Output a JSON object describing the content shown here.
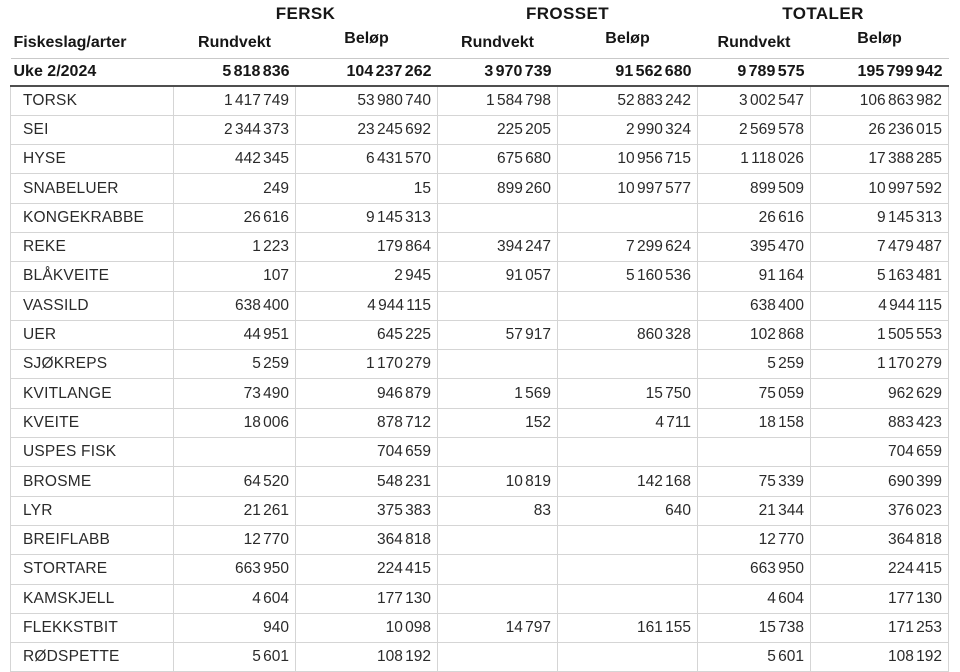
{
  "page": {
    "background": "#ffffff",
    "text_color": "#1f1f1f",
    "grid_color": "#d5d5d5",
    "header_rule_color": "#4f4f4f"
  },
  "table": {
    "group_headers": [
      "FERSK",
      "FROSSET",
      "TOTALER"
    ],
    "species_header": "Fiskeslag/arter",
    "sub_headers": {
      "rundvekt": "Rundvekt",
      "belop": "Beløp"
    },
    "totals_row": {
      "label": "Uke 2/2024",
      "values": [
        "5 818 836",
        "104 237 262",
        "3 970 739",
        "91 562 680",
        "9 789 575",
        "195 799 942"
      ]
    },
    "rows": [
      {
        "species": "TORSK",
        "values": [
          "1 417 749",
          "53 980 740",
          "1 584 798",
          "52 883 242",
          "3 002 547",
          "106 863 982"
        ]
      },
      {
        "species": "SEI",
        "values": [
          "2 344 373",
          "23 245 692",
          "225 205",
          "2 990 324",
          "2 569 578",
          "26 236 015"
        ]
      },
      {
        "species": "HYSE",
        "values": [
          "442 345",
          "6 431 570",
          "675 680",
          "10 956 715",
          "1 118 026",
          "17 388 285"
        ]
      },
      {
        "species": "SNABELUER",
        "values": [
          "249",
          "15",
          "899 260",
          "10 997 577",
          "899 509",
          "10 997 592"
        ]
      },
      {
        "species": "KONGEKRABBE",
        "values": [
          "26 616",
          "9 145 313",
          "",
          "",
          "26 616",
          "9 145 313"
        ]
      },
      {
        "species": "REKE",
        "values": [
          "1 223",
          "179 864",
          "394 247",
          "7 299 624",
          "395 470",
          "7 479 487"
        ]
      },
      {
        "species": "BLÅKVEITE",
        "values": [
          "107",
          "2 945",
          "91 057",
          "5 160 536",
          "91 164",
          "5 163 481"
        ]
      },
      {
        "species": "VASSILD",
        "values": [
          "638 400",
          "4 944 115",
          "",
          "",
          "638 400",
          "4 944 115"
        ]
      },
      {
        "species": "UER",
        "values": [
          "44 951",
          "645 225",
          "57 917",
          "860 328",
          "102 868",
          "1 505 553"
        ]
      },
      {
        "species": "SJØKREPS",
        "values": [
          "5 259",
          "1 170 279",
          "",
          "",
          "5 259",
          "1 170 279"
        ]
      },
      {
        "species": "KVITLANGE",
        "values": [
          "73 490",
          "946 879",
          "1 569",
          "15 750",
          "75 059",
          "962 629"
        ]
      },
      {
        "species": "KVEITE",
        "values": [
          "18 006",
          "878 712",
          "152",
          "4 711",
          "18 158",
          "883 423"
        ]
      },
      {
        "species": "USPES FISK",
        "values": [
          "",
          "704 659",
          "",
          "",
          "",
          "704 659"
        ]
      },
      {
        "species": "BROSME",
        "values": [
          "64 520",
          "548 231",
          "10 819",
          "142 168",
          "75 339",
          "690 399"
        ]
      },
      {
        "species": "LYR",
        "values": [
          "21 261",
          "375 383",
          "83",
          "640",
          "21 344",
          "376 023"
        ]
      },
      {
        "species": "BREIFLABB",
        "values": [
          "12 770",
          "364 818",
          "",
          "",
          "12 770",
          "364 818"
        ]
      },
      {
        "species": "STORTARE",
        "values": [
          "663 950",
          "224 415",
          "",
          "",
          "663 950",
          "224 415"
        ]
      },
      {
        "species": "KAMSKJELL",
        "values": [
          "4 604",
          "177 130",
          "",
          "",
          "4 604",
          "177 130"
        ]
      },
      {
        "species": "FLEKKSTBIT",
        "values": [
          "940",
          "10 098",
          "14 797",
          "161 155",
          "15 738",
          "171 253"
        ]
      },
      {
        "species": "RØDSPETTE",
        "values": [
          "5 601",
          "108 192",
          "",
          "",
          "5 601",
          "108 192"
        ]
      }
    ]
  },
  "chart_data": {
    "type": "table",
    "title": "",
    "columns": [
      "Fiskeslag/arter",
      "FERSK Rundvekt",
      "FERSK Beløp",
      "FROSSET Rundvekt",
      "FROSSET Beløp",
      "TOTALER Rundvekt",
      "TOTALER Beløp"
    ],
    "rows": [
      [
        "Uke 2/2024",
        5818836,
        104237262,
        3970739,
        91562680,
        9789575,
        195799942
      ],
      [
        "TORSK",
        1417749,
        53980740,
        1584798,
        52883242,
        3002547,
        106863982
      ],
      [
        "SEI",
        2344373,
        23245692,
        225205,
        2990324,
        2569578,
        26236015
      ],
      [
        "HYSE",
        442345,
        6431570,
        675680,
        10956715,
        1118026,
        17388285
      ],
      [
        "SNABELUER",
        249,
        15,
        899260,
        10997577,
        899509,
        10997592
      ],
      [
        "KONGEKRABBE",
        26616,
        9145313,
        null,
        null,
        26616,
        9145313
      ],
      [
        "REKE",
        1223,
        179864,
        394247,
        7299624,
        395470,
        7479487
      ],
      [
        "BLÅKVEITE",
        107,
        2945,
        91057,
        5160536,
        91164,
        5163481
      ],
      [
        "VASSILD",
        638400,
        4944115,
        null,
        null,
        638400,
        4944115
      ],
      [
        "UER",
        44951,
        645225,
        57917,
        860328,
        102868,
        1505553
      ],
      [
        "SJØKREPS",
        5259,
        1170279,
        null,
        null,
        5259,
        1170279
      ],
      [
        "KVITLANGE",
        73490,
        946879,
        1569,
        15750,
        75059,
        962629
      ],
      [
        "KVEITE",
        18006,
        878712,
        152,
        4711,
        18158,
        883423
      ],
      [
        "USPES FISK",
        null,
        704659,
        null,
        null,
        null,
        704659
      ],
      [
        "BROSME",
        64520,
        548231,
        10819,
        142168,
        75339,
        690399
      ],
      [
        "LYR",
        21261,
        375383,
        83,
        640,
        21344,
        376023
      ],
      [
        "BREIFLABB",
        12770,
        364818,
        null,
        null,
        12770,
        364818
      ],
      [
        "STORTARE",
        663950,
        224415,
        null,
        null,
        663950,
        224415
      ],
      [
        "KAMSKJELL",
        4604,
        177130,
        null,
        null,
        4604,
        177130
      ],
      [
        "FLEKKSTBIT",
        940,
        10098,
        14797,
        161155,
        15738,
        171253
      ],
      [
        "RØDSPETTE",
        5601,
        108192,
        null,
        null,
        5601,
        108192
      ]
    ]
  }
}
